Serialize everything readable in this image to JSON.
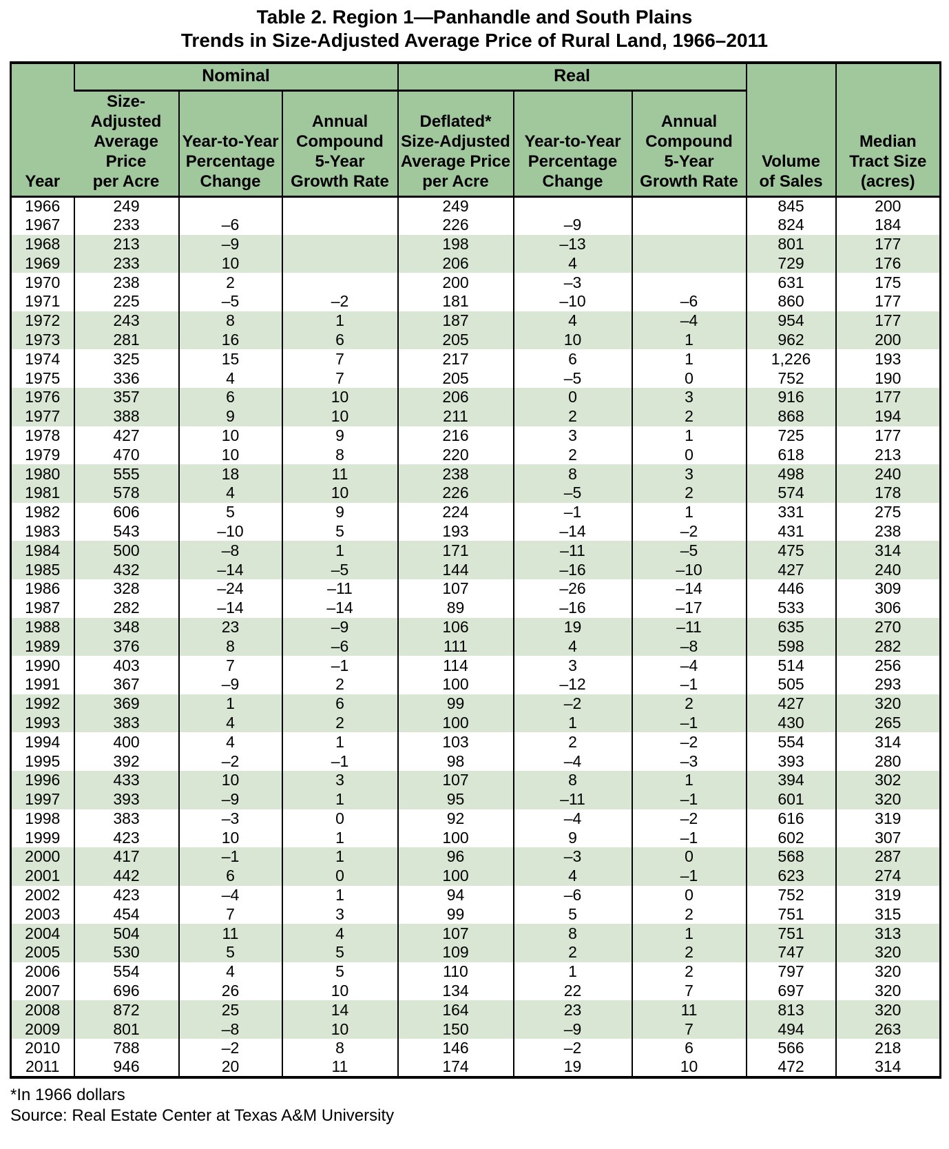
{
  "colors": {
    "header_green": "#a0c89c",
    "stripe_green": "#d9e6d3",
    "border": "#000000",
    "text": "#000000",
    "page_bg": "#ffffff"
  },
  "title": {
    "line1": "Table 2. Region 1—Panhandle and South Plains",
    "line2": "Trends in Size-Adjusted Average Price of Rural Land, 1966–2011"
  },
  "table": {
    "groups": {
      "nominal": "Nominal",
      "real": "Real"
    },
    "columns": {
      "year": "Year",
      "nominal_price": "Size-Adjusted\nAverage Price\nper Acre",
      "nominal_yty": "Year-to-Year\nPercentage\nChange",
      "nominal_cgr": "Annual\nCompound\n5-Year\nGrowth Rate",
      "real_price": "Deflated*\nSize-Adjusted\nAverage Price\nper Acre",
      "real_yty": "Year-to-Year\nPercentage\nChange",
      "real_cgr": "Annual\nCompound\n5-Year\nGrowth Rate",
      "volume": "Volume\nof Sales",
      "median": "Median\nTract Size\n(acres)"
    },
    "rows": [
      [
        "1966",
        "249",
        "",
        "",
        "249",
        "",
        "",
        "845",
        "200"
      ],
      [
        "1967",
        "233",
        "–6",
        "",
        "226",
        "–9",
        "",
        "824",
        "184"
      ],
      [
        "1968",
        "213",
        "–9",
        "",
        "198",
        "–13",
        "",
        "801",
        "177"
      ],
      [
        "1969",
        "233",
        "10",
        "",
        "206",
        "4",
        "",
        "729",
        "176"
      ],
      [
        "1970",
        "238",
        "2",
        "",
        "200",
        "–3",
        "",
        "631",
        "175"
      ],
      [
        "1971",
        "225",
        "–5",
        "–2",
        "181",
        "–10",
        "–6",
        "860",
        "177"
      ],
      [
        "1972",
        "243",
        "8",
        "1",
        "187",
        "4",
        "–4",
        "954",
        "177"
      ],
      [
        "1973",
        "281",
        "16",
        "6",
        "205",
        "10",
        "1",
        "962",
        "200"
      ],
      [
        "1974",
        "325",
        "15",
        "7",
        "217",
        "6",
        "1",
        "1,226",
        "193"
      ],
      [
        "1975",
        "336",
        "4",
        "7",
        "205",
        "–5",
        "0",
        "752",
        "190"
      ],
      [
        "1976",
        "357",
        "6",
        "10",
        "206",
        "0",
        "3",
        "916",
        "177"
      ],
      [
        "1977",
        "388",
        "9",
        "10",
        "211",
        "2",
        "2",
        "868",
        "194"
      ],
      [
        "1978",
        "427",
        "10",
        "9",
        "216",
        "3",
        "1",
        "725",
        "177"
      ],
      [
        "1979",
        "470",
        "10",
        "8",
        "220",
        "2",
        "0",
        "618",
        "213"
      ],
      [
        "1980",
        "555",
        "18",
        "11",
        "238",
        "8",
        "3",
        "498",
        "240"
      ],
      [
        "1981",
        "578",
        "4",
        "10",
        "226",
        "–5",
        "2",
        "574",
        "178"
      ],
      [
        "1982",
        "606",
        "5",
        "9",
        "224",
        "–1",
        "1",
        "331",
        "275"
      ],
      [
        "1983",
        "543",
        "–10",
        "5",
        "193",
        "–14",
        "–2",
        "431",
        "238"
      ],
      [
        "1984",
        "500",
        "–8",
        "1",
        "171",
        "–11",
        "–5",
        "475",
        "314"
      ],
      [
        "1985",
        "432",
        "–14",
        "–5",
        "144",
        "–16",
        "–10",
        "427",
        "240"
      ],
      [
        "1986",
        "328",
        "–24",
        "–11",
        "107",
        "–26",
        "–14",
        "446",
        "309"
      ],
      [
        "1987",
        "282",
        "–14",
        "–14",
        "89",
        "–16",
        "–17",
        "533",
        "306"
      ],
      [
        "1988",
        "348",
        "23",
        "–9",
        "106",
        "19",
        "–11",
        "635",
        "270"
      ],
      [
        "1989",
        "376",
        "8",
        "–6",
        "111",
        "4",
        "–8",
        "598",
        "282"
      ],
      [
        "1990",
        "403",
        "7",
        "–1",
        "114",
        "3",
        "–4",
        "514",
        "256"
      ],
      [
        "1991",
        "367",
        "–9",
        "2",
        "100",
        "–12",
        "–1",
        "505",
        "293"
      ],
      [
        "1992",
        "369",
        "1",
        "6",
        "99",
        "–2",
        "2",
        "427",
        "320"
      ],
      [
        "1993",
        "383",
        "4",
        "2",
        "100",
        "1",
        "–1",
        "430",
        "265"
      ],
      [
        "1994",
        "400",
        "4",
        "1",
        "103",
        "2",
        "–2",
        "554",
        "314"
      ],
      [
        "1995",
        "392",
        "–2",
        "–1",
        "98",
        "–4",
        "–3",
        "393",
        "280"
      ],
      [
        "1996",
        "433",
        "10",
        "3",
        "107",
        "8",
        "1",
        "394",
        "302"
      ],
      [
        "1997",
        "393",
        "–9",
        "1",
        "95",
        "–11",
        "–1",
        "601",
        "320"
      ],
      [
        "1998",
        "383",
        "–3",
        "0",
        "92",
        "–4",
        "–2",
        "616",
        "319"
      ],
      [
        "1999",
        "423",
        "10",
        "1",
        "100",
        "9",
        "–1",
        "602",
        "307"
      ],
      [
        "2000",
        "417",
        "–1",
        "1",
        "96",
        "–3",
        "0",
        "568",
        "287"
      ],
      [
        "2001",
        "442",
        "6",
        "0",
        "100",
        "4",
        "–1",
        "623",
        "274"
      ],
      [
        "2002",
        "423",
        "–4",
        "1",
        "94",
        "–6",
        "0",
        "752",
        "319"
      ],
      [
        "2003",
        "454",
        "7",
        "3",
        "99",
        "5",
        "2",
        "751",
        "315"
      ],
      [
        "2004",
        "504",
        "11",
        "4",
        "107",
        "8",
        "1",
        "751",
        "313"
      ],
      [
        "2005",
        "530",
        "5",
        "5",
        "109",
        "2",
        "2",
        "747",
        "320"
      ],
      [
        "2006",
        "554",
        "4",
        "5",
        "110",
        "1",
        "2",
        "797",
        "320"
      ],
      [
        "2007",
        "696",
        "26",
        "10",
        "134",
        "22",
        "7",
        "697",
        "320"
      ],
      [
        "2008",
        "872",
        "25",
        "14",
        "164",
        "23",
        "11",
        "813",
        "320"
      ],
      [
        "2009",
        "801",
        "–8",
        "10",
        "150",
        "–9",
        "7",
        "494",
        "263"
      ],
      [
        "2010",
        "788",
        "–2",
        "8",
        "146",
        "–2",
        "6",
        "566",
        "218"
      ],
      [
        "2011",
        "946",
        "20",
        "11",
        "174",
        "19",
        "10",
        "472",
        "314"
      ]
    ]
  },
  "footnotes": {
    "deflator": "*In 1966 dollars",
    "source": "Source: Real Estate Center at Texas A&M University"
  }
}
